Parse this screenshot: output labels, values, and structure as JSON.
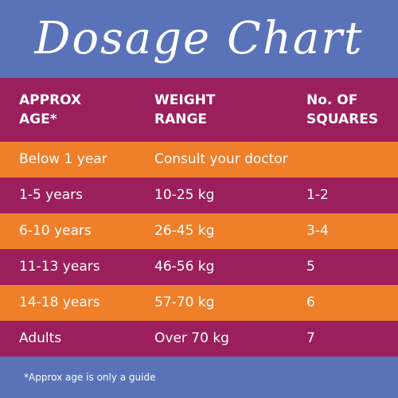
{
  "title": "Dosage Chart",
  "colors": {
    "background": "#5a73b8",
    "header_band": "#9a1f5c",
    "row_plum": "#9a1f5c",
    "row_orange": "#f07f2a",
    "text": "#ffffff"
  },
  "table": {
    "headers": [
      {
        "line1": "APPROX",
        "line2": "AGE*"
      },
      {
        "line1": "WEIGHT",
        "line2": "RANGE"
      },
      {
        "line1": "No. OF",
        "line2": "SQUARES"
      }
    ],
    "rows": [
      {
        "age": "Below 1 year",
        "weight": "Consult your doctor",
        "squares": "",
        "color": "orange"
      },
      {
        "age": "1-5 years",
        "weight": "10-25 kg",
        "squares": "1-2",
        "color": "plum"
      },
      {
        "age": "6-10 years",
        "weight": "26-45 kg",
        "squares": "3-4",
        "color": "orange"
      },
      {
        "age": "11-13 years",
        "weight": "46-56 kg",
        "squares": "5",
        "color": "plum"
      },
      {
        "age": "14-18 years",
        "weight": "57-70 kg",
        "squares": "6",
        "color": "orange"
      },
      {
        "age": "Adults",
        "weight": "Over 70 kg",
        "squares": "7",
        "color": "plum"
      }
    ]
  },
  "footnote": "*Approx age is only a guide"
}
